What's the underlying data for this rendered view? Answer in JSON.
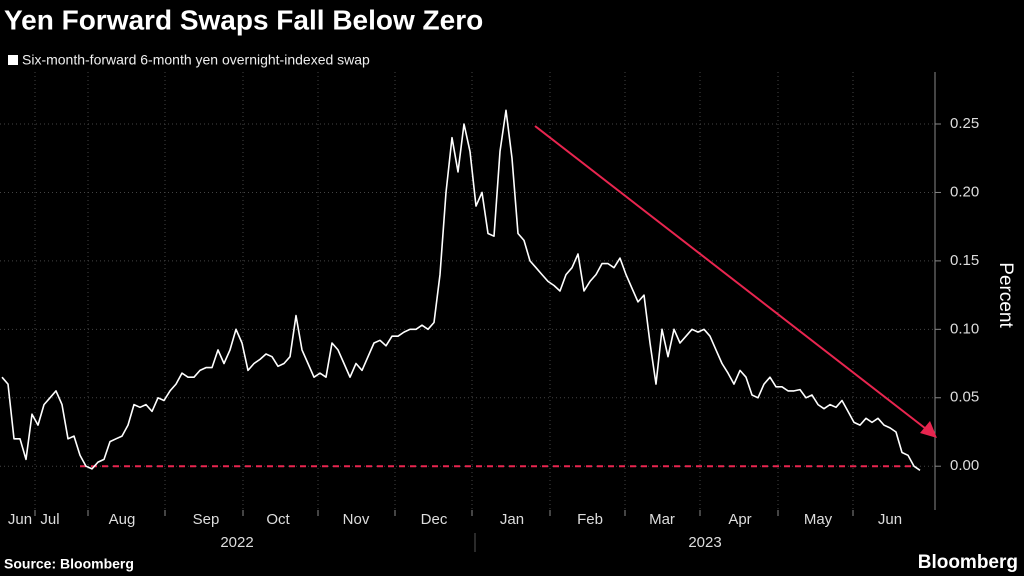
{
  "chart_data": {
    "type": "line",
    "title": "Yen Forward Swaps Fall Below Zero",
    "y_axis_label": "Percent",
    "source": "Source: Bloomberg",
    "brand": "Bloomberg",
    "year_labels": [
      "2022",
      "2023"
    ],
    "categories": [
      null,
      null,
      null,
      "Jun",
      null,
      null,
      null,
      null,
      "Jul",
      null,
      null,
      null,
      null,
      null,
      null,
      null,
      null,
      null,
      null,
      null,
      "Aug",
      null,
      null,
      null,
      null,
      null,
      null,
      null,
      null,
      null,
      null,
      null,
      null,
      null,
      "Sep",
      null,
      null,
      null,
      null,
      null,
      null,
      null,
      null,
      null,
      null,
      null,
      "Oct",
      null,
      null,
      null,
      null,
      null,
      null,
      null,
      null,
      null,
      null,
      null,
      null,
      "Nov",
      null,
      null,
      null,
      null,
      null,
      null,
      null,
      null,
      null,
      null,
      null,
      null,
      "Dec",
      null,
      null,
      null,
      null,
      null,
      null,
      null,
      null,
      null,
      null,
      null,
      null,
      "Jan",
      null,
      null,
      null,
      null,
      null,
      null,
      null,
      null,
      null,
      null,
      null,
      null,
      "Feb",
      null,
      null,
      null,
      null,
      null,
      null,
      null,
      null,
      null,
      null,
      null,
      "Mar",
      null,
      null,
      null,
      null,
      null,
      null,
      null,
      null,
      null,
      null,
      null,
      null,
      "Apr",
      null,
      null,
      null,
      null,
      null,
      null,
      null,
      null,
      null,
      null,
      null,
      null,
      "May",
      null,
      null,
      null,
      null,
      null,
      null,
      null,
      null,
      null,
      null,
      null,
      "Jun",
      null,
      null,
      null,
      null,
      null
    ],
    "series": [
      {
        "name": "Six-month-forward 6-month yen overnight-indexed swap",
        "color": "#ffffff",
        "values": [
          0.065,
          0.06,
          0.02,
          0.02,
          0.005,
          0.038,
          0.03,
          0.045,
          0.05,
          0.055,
          0.045,
          0.02,
          0.022,
          0.008,
          0.0,
          -0.002,
          0.003,
          0.005,
          0.018,
          0.02,
          0.022,
          0.03,
          0.045,
          0.043,
          0.045,
          0.04,
          0.05,
          0.048,
          0.055,
          0.06,
          0.068,
          0.065,
          0.065,
          0.07,
          0.072,
          0.072,
          0.085,
          0.075,
          0.085,
          0.1,
          0.09,
          0.07,
          0.075,
          0.078,
          0.082,
          0.08,
          0.073,
          0.075,
          0.08,
          0.11,
          0.085,
          0.075,
          0.065,
          0.068,
          0.065,
          0.09,
          0.085,
          0.075,
          0.065,
          0.075,
          0.07,
          0.08,
          0.09,
          0.092,
          0.088,
          0.095,
          0.095,
          0.098,
          0.1,
          0.1,
          0.103,
          0.1,
          0.105,
          0.14,
          0.2,
          0.24,
          0.215,
          0.25,
          0.23,
          0.19,
          0.2,
          0.17,
          0.168,
          0.23,
          0.26,
          0.225,
          0.17,
          0.165,
          0.15,
          0.145,
          0.14,
          0.135,
          0.132,
          0.128,
          0.14,
          0.145,
          0.155,
          0.128,
          0.135,
          0.14,
          0.148,
          0.148,
          0.145,
          0.152,
          0.14,
          0.13,
          0.12,
          0.125,
          0.09,
          0.06,
          0.1,
          0.08,
          0.1,
          0.09,
          0.095,
          0.1,
          0.098,
          0.1,
          0.095,
          0.085,
          0.075,
          0.068,
          0.06,
          0.07,
          0.065,
          0.052,
          0.05,
          0.06,
          0.065,
          0.058,
          0.058,
          0.055,
          0.055,
          0.056,
          0.05,
          0.052,
          0.045,
          0.042,
          0.045,
          0.043,
          0.048,
          0.04,
          0.032,
          0.03,
          0.035,
          0.032,
          0.035,
          0.03,
          0.028,
          0.025,
          0.01,
          0.008,
          0.0,
          -0.003
        ]
      }
    ],
    "reference_line": {
      "value": 0,
      "color": "#e8254f"
    },
    "annotation_color": "#e8254f",
    "ylim": [
      -0.032,
      0.288
    ],
    "yticks": [
      {
        "value": 0,
        "label": "0.00"
      },
      {
        "value": 0.05,
        "label": "0.05"
      },
      {
        "value": 0.1,
        "label": "0.10"
      },
      {
        "value": 0.15,
        "label": "0.15"
      },
      {
        "value": 0.2,
        "label": "0.20"
      },
      {
        "value": 0.25,
        "label": "0.25"
      }
    ],
    "grid": true
  }
}
